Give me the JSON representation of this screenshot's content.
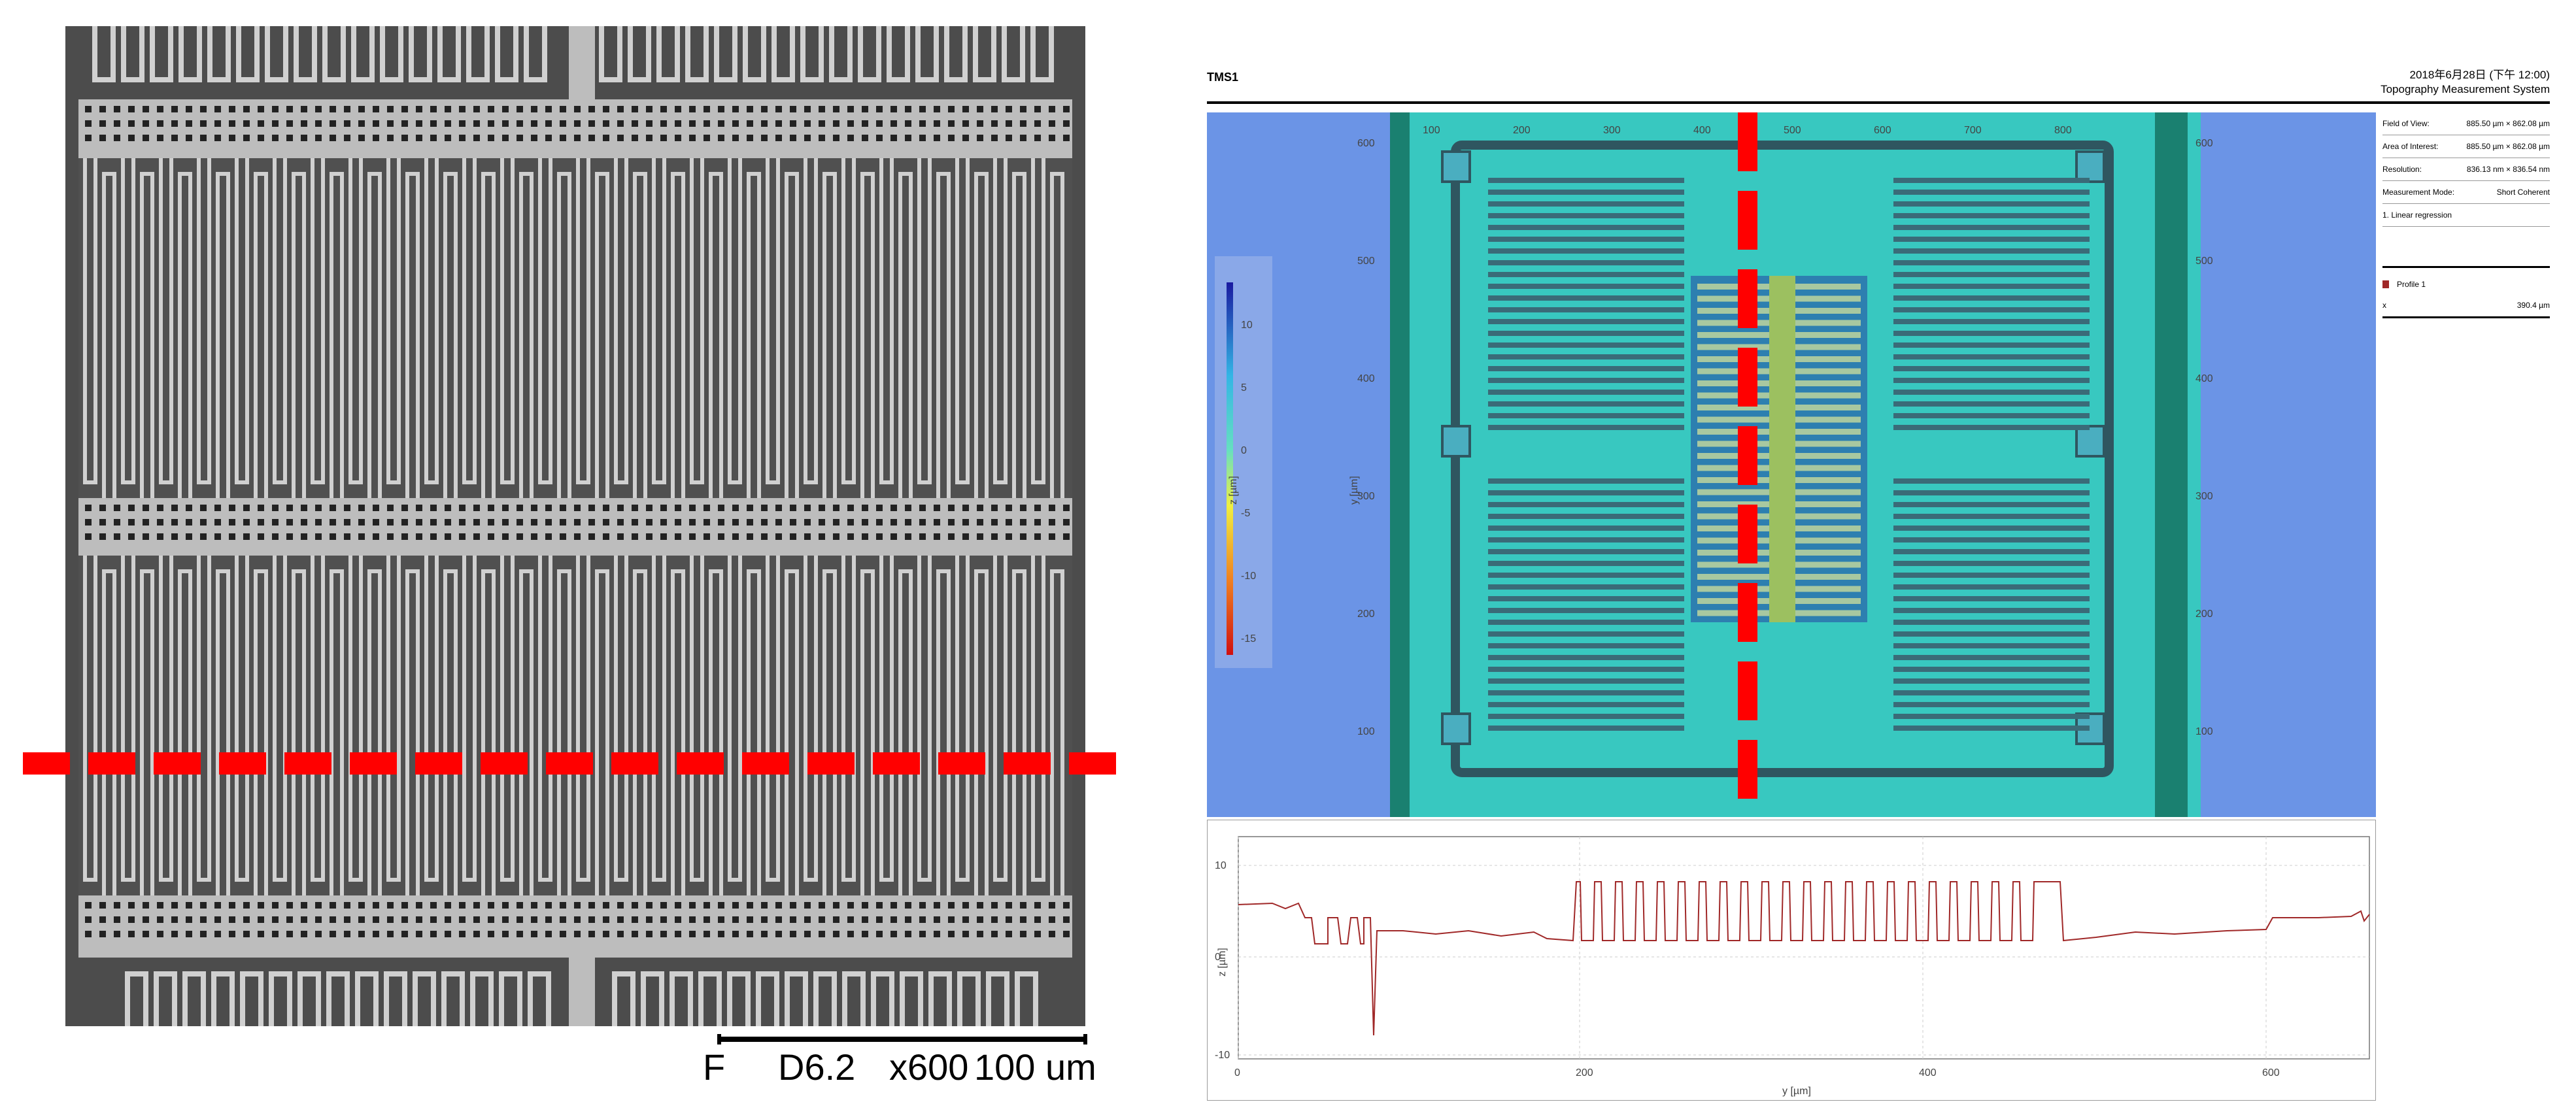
{
  "sem": {
    "caption": {
      "detector": "F",
      "working_distance": "D6.2",
      "magnification": "x600",
      "scale": "100 um"
    },
    "dash_color": "#ff0000"
  },
  "tms": {
    "title": "TMS1",
    "date": "2018年6月28日 (下午 12:00)",
    "subtitle": "Topography Measurement System",
    "info": [
      {
        "label": "Field of View:",
        "value": "885.50 µm × 862.08 µm"
      },
      {
        "label": "Area of Interest:",
        "value": "885.50 µm × 862.08 µm"
      },
      {
        "label": "Resolution:",
        "value": "836.13 nm × 836.54 nm"
      },
      {
        "label": "Measurement Mode:",
        "value": "Short Coherent"
      },
      {
        "label": "1. Linear regression",
        "value": ""
      }
    ],
    "profile_legend": "Profile 1",
    "profile_value_label": "x",
    "profile_value": "390.4 µm",
    "map": {
      "x_ticks": [
        "100",
        "200",
        "300",
        "400",
        "500",
        "600",
        "700",
        "800"
      ],
      "y_ticks": [
        "600",
        "500",
        "400",
        "300",
        "200",
        "100"
      ],
      "y_label": "y [µm]",
      "colorbar_ticks": [
        "10",
        "5",
        "0",
        "-5",
        "-10",
        "-15"
      ],
      "colorbar_label": "z [µm]",
      "colors": {
        "background": "#6b94e6",
        "surface": "#38c8c0",
        "finger": "#3a6b78",
        "dash": "#ff0000",
        "side_bar": "#1a8070"
      }
    },
    "profile": {
      "x_ticks": [
        "0",
        "200",
        "400",
        "600"
      ],
      "y_ticks": [
        "10",
        "0",
        "-10"
      ],
      "x_label": "y [µm]",
      "y_label": "z [µm]",
      "line_color": "#a02828"
    }
  }
}
